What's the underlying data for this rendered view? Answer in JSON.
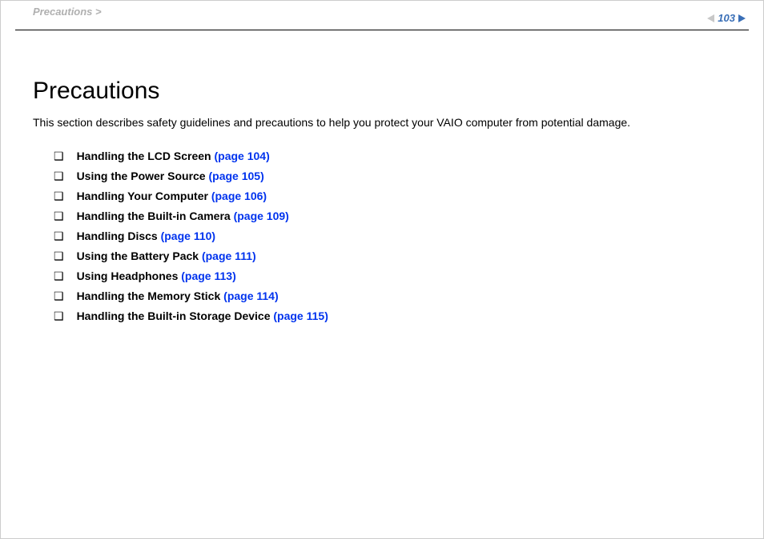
{
  "header": {
    "breadcrumb": "Precautions >",
    "page_number": "103"
  },
  "title": "Precautions",
  "intro": "This section describes safety guidelines and precautions to help you protect your VAIO computer from potential damage.",
  "bullet_glyph": "❑",
  "items": [
    {
      "label": "Handling the LCD Screen ",
      "page_ref": "(page 104)"
    },
    {
      "label": "Using the Power Source ",
      "page_ref": "(page 105)"
    },
    {
      "label": "Handling Your Computer ",
      "page_ref": "(page 106)"
    },
    {
      "label": "Handling the Built-in Camera ",
      "page_ref": "(page 109)"
    },
    {
      "label": "Handling Discs ",
      "page_ref": "(page 110)"
    },
    {
      "label": "Using the Battery Pack ",
      "page_ref": "(page 111)"
    },
    {
      "label": "Using Headphones ",
      "page_ref": "(page 113)"
    },
    {
      "label": "Handling the Memory Stick ",
      "page_ref": "(page 114)"
    },
    {
      "label": "Handling the Built-in Storage Device ",
      "page_ref": "(page 115)"
    }
  ],
  "colors": {
    "breadcrumb": "#b0b0b0",
    "pagenum": "#3a6fb7",
    "link": "#0033ee",
    "text": "#000000",
    "bg": "#ffffff"
  }
}
